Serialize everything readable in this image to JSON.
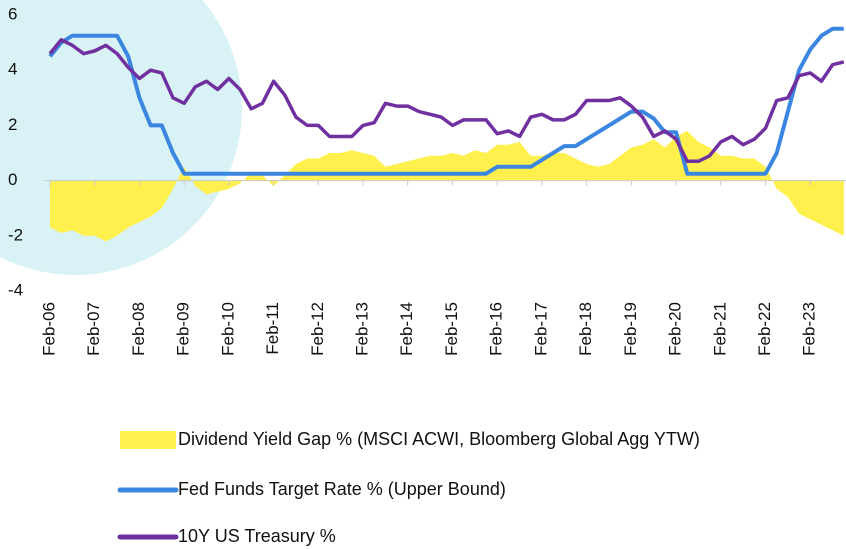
{
  "chart_data": {
    "type": "line",
    "categories": [
      "Feb-06",
      null,
      null,
      null,
      "Feb-07",
      null,
      null,
      null,
      "Feb-08",
      null,
      null,
      null,
      "Feb-09",
      null,
      null,
      null,
      "Feb-10",
      null,
      null,
      null,
      "Feb-11",
      null,
      null,
      null,
      "Feb-12",
      null,
      null,
      null,
      "Feb-13",
      null,
      null,
      null,
      "Feb-14",
      null,
      null,
      null,
      "Feb-15",
      null,
      null,
      null,
      "Feb-16",
      null,
      null,
      null,
      "Feb-17",
      null,
      null,
      null,
      "Feb-18",
      null,
      null,
      null,
      "Feb-19",
      null,
      null,
      null,
      "Feb-20",
      null,
      null,
      null,
      "Feb-21",
      null,
      null,
      null,
      "Feb-22",
      null,
      null,
      null,
      "Feb-23",
      null,
      null,
      null
    ],
    "series": [
      {
        "name": "Dividend Yield Gap % (MSCI ACWI, Bloomberg Global Agg YTW)",
        "color": "#fff04d",
        "kind": "area",
        "values": [
          -1.7,
          -1.9,
          -1.8,
          -2.0,
          -2.0,
          -2.2,
          -2.0,
          -1.7,
          -1.5,
          -1.3,
          -1.0,
          -0.3,
          0.5,
          -0.2,
          -0.5,
          -0.4,
          -0.3,
          -0.1,
          0.3,
          0.2,
          -0.2,
          0.2,
          0.6,
          0.8,
          0.8,
          1.0,
          1.0,
          1.1,
          1.0,
          0.9,
          0.5,
          0.6,
          0.7,
          0.8,
          0.9,
          0.9,
          1.0,
          0.9,
          1.1,
          1.0,
          1.3,
          1.3,
          1.4,
          0.9,
          0.9,
          1.0,
          1.0,
          0.8,
          0.6,
          0.5,
          0.6,
          0.9,
          1.2,
          1.3,
          1.5,
          1.2,
          1.6,
          1.8,
          1.4,
          1.2,
          0.9,
          0.9,
          0.8,
          0.8,
          0.5,
          -0.3,
          -0.6,
          -1.2,
          -1.4,
          -1.6,
          -1.8,
          -2.0
        ]
      },
      {
        "name": "Fed Funds Target Rate % (Upper Bound)",
        "color": "#3a86e0",
        "kind": "line",
        "values": [
          4.5,
          5.0,
          5.25,
          5.25,
          5.25,
          5.25,
          5.25,
          4.5,
          3.0,
          2.0,
          2.0,
          1.0,
          0.25,
          0.25,
          0.25,
          0.25,
          0.25,
          0.25,
          0.25,
          0.25,
          0.25,
          0.25,
          0.25,
          0.25,
          0.25,
          0.25,
          0.25,
          0.25,
          0.25,
          0.25,
          0.25,
          0.25,
          0.25,
          0.25,
          0.25,
          0.25,
          0.25,
          0.25,
          0.25,
          0.25,
          0.5,
          0.5,
          0.5,
          0.5,
          0.75,
          1.0,
          1.25,
          1.25,
          1.5,
          1.75,
          2.0,
          2.25,
          2.5,
          2.5,
          2.25,
          1.75,
          1.75,
          0.25,
          0.25,
          0.25,
          0.25,
          0.25,
          0.25,
          0.25,
          0.25,
          1.0,
          2.5,
          4.0,
          4.75,
          5.25,
          5.5,
          5.5
        ]
      },
      {
        "name": "10Y US Treasury %",
        "color": "#7030a0",
        "kind": "line",
        "values": [
          4.6,
          5.1,
          4.9,
          4.6,
          4.7,
          4.9,
          4.6,
          4.1,
          3.7,
          4.0,
          3.9,
          3.0,
          2.8,
          3.4,
          3.6,
          3.3,
          3.7,
          3.3,
          2.6,
          2.8,
          3.6,
          3.1,
          2.3,
          2.0,
          2.0,
          1.6,
          1.6,
          1.6,
          2.0,
          2.1,
          2.8,
          2.7,
          2.7,
          2.5,
          2.4,
          2.3,
          2.0,
          2.2,
          2.2,
          2.2,
          1.7,
          1.8,
          1.6,
          2.3,
          2.4,
          2.2,
          2.2,
          2.4,
          2.9,
          2.9,
          2.9,
          3.0,
          2.7,
          2.3,
          1.6,
          1.8,
          1.5,
          0.7,
          0.7,
          0.9,
          1.4,
          1.6,
          1.3,
          1.5,
          1.9,
          2.9,
          3.0,
          3.8,
          3.9,
          3.6,
          4.2,
          4.3
        ]
      }
    ],
    "ylim": [
      -4,
      6
    ],
    "yticks": [
      -4,
      -2,
      0,
      2,
      4,
      6
    ]
  }
}
